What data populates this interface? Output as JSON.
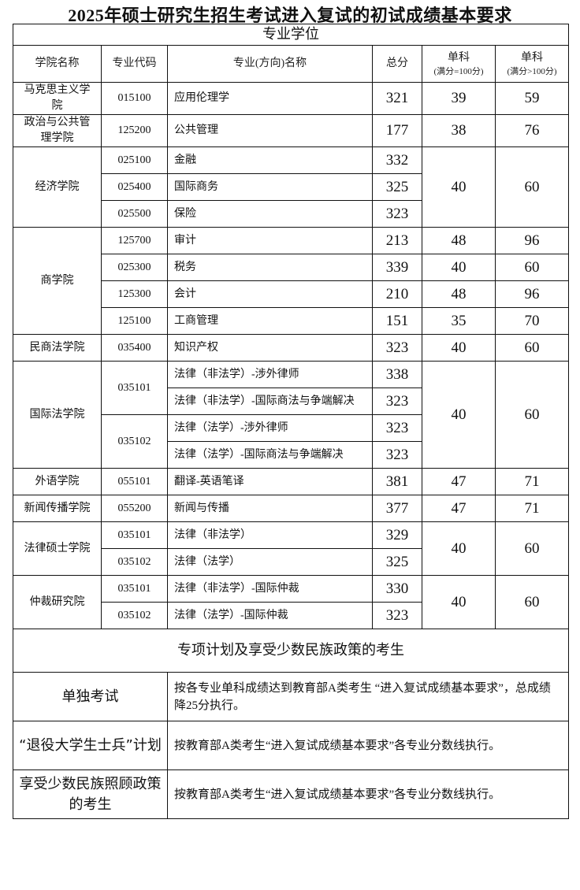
{
  "title": "2025年硕士研究生招生考试进入复试的初试成绩基本要求",
  "section_title": "专业学位",
  "headers": {
    "college": "学院名称",
    "code": "专业代码",
    "major": "专业(方向)名称",
    "total": "总分",
    "single1": "单科",
    "single1_sub": "(满分=100分)",
    "single2": "单科",
    "single2_sub": "(满分>100分)"
  },
  "colleges": [
    {
      "name": "马克思主义学院",
      "rows": [
        {
          "code": "015100",
          "major": "应用伦理学",
          "total": "321",
          "s1": "39",
          "s2": "59"
        }
      ]
    },
    {
      "name": "政治与公共管理学院",
      "rows": [
        {
          "code": "125200",
          "major": "公共管理",
          "total": "177",
          "s1": "38",
          "s2": "76"
        }
      ]
    },
    {
      "name": "经济学院",
      "rows": [
        {
          "code": "025100",
          "major": "金融",
          "total": "332",
          "s1": "40",
          "s2": "60"
        },
        {
          "code": "025400",
          "major": "国际商务",
          "total": "325",
          "s1": "40",
          "s2": "60"
        },
        {
          "code": "025500",
          "major": "保险",
          "total": "323",
          "s1": "40",
          "s2": "60"
        }
      ]
    },
    {
      "name": "商学院",
      "rows": [
        {
          "code": "125700",
          "major": "审计",
          "total": "213",
          "s1": "48",
          "s2": "96"
        },
        {
          "code": "025300",
          "major": "税务",
          "total": "339",
          "s1": "40",
          "s2": "60"
        },
        {
          "code": "125300",
          "major": "会计",
          "total": "210",
          "s1": "48",
          "s2": "96"
        },
        {
          "code": "125100",
          "major": "工商管理",
          "total": "151",
          "s1": "35",
          "s2": "70"
        }
      ]
    },
    {
      "name": "民商法学院",
      "rows": [
        {
          "code": "035400",
          "major": "知识产权",
          "total": "323",
          "s1": "40",
          "s2": "60"
        }
      ]
    },
    {
      "name": "国际法学院",
      "rows": [
        {
          "code": "035101",
          "major": "法律（非法学）-涉外律师",
          "total": "338",
          "s1": "40",
          "s2": "60"
        },
        {
          "code": "035101",
          "major": "法律（非法学）-国际商法与争端解决",
          "total": "323",
          "s1": "40",
          "s2": "60"
        },
        {
          "code": "035102",
          "major": "法律（法学）-涉外律师",
          "total": "323",
          "s1": "40",
          "s2": "60"
        },
        {
          "code": "035102",
          "major": "法律（法学）-国际商法与争端解决",
          "total": "323",
          "s1": "40",
          "s2": "60"
        }
      ]
    },
    {
      "name": "外语学院",
      "rows": [
        {
          "code": "055101",
          "major": "翻译-英语笔译",
          "total": "381",
          "s1": "47",
          "s2": "71"
        }
      ]
    },
    {
      "name": "新闻传播学院",
      "rows": [
        {
          "code": "055200",
          "major": "新闻与传播",
          "total": "377",
          "s1": "47",
          "s2": "71"
        }
      ]
    },
    {
      "name": "法律硕士学院",
      "rows": [
        {
          "code": "035101",
          "major": "法律（非法学）",
          "total": "329",
          "s1": "40",
          "s2": "60"
        },
        {
          "code": "035102",
          "major": "法律（法学）",
          "total": "325",
          "s1": "40",
          "s2": "60"
        }
      ]
    },
    {
      "name": "仲裁研究院",
      "rows": [
        {
          "code": "035101",
          "major": "法律（非法学）-国际仲裁",
          "total": "330",
          "s1": "40",
          "s2": "60"
        },
        {
          "code": "035102",
          "major": "法律（法学）-国际仲裁",
          "total": "323",
          "s1": "40",
          "s2": "60"
        }
      ]
    }
  ],
  "special": {
    "title": "专项计划及享受少数民族政策的考生",
    "items": [
      {
        "label": "单独考试",
        "text": "按各专业单科成绩达到教育部A类考生 “进入复试成绩基本要求”，总成绩降25分执行。"
      },
      {
        "label": "“退役大学生士兵”计划",
        "text": "按教育部A类考生“进入复试成绩基本要求”各专业分数线执行。"
      },
      {
        "label": "享受少数民族照顾政策的考生",
        "text": "按教育部A类考生“进入复试成绩基本要求”各专业分数线执行。"
      }
    ]
  }
}
